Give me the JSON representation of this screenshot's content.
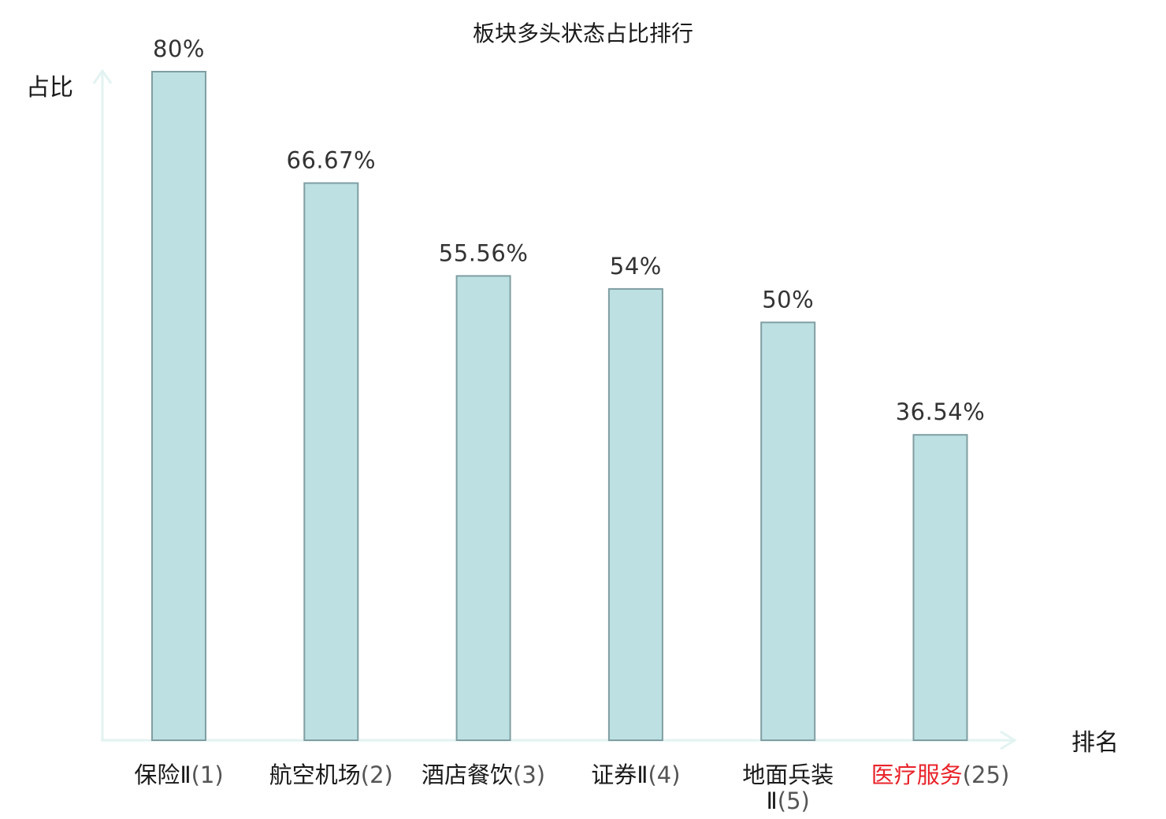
{
  "chart_data": {
    "type": "bar",
    "title": "板块多头状态占比排行",
    "ylabel": "占比",
    "xlabel": "排名",
    "ylim": [
      0,
      80
    ],
    "grid": false,
    "categories": [
      {
        "lines": [
          {
            "name": "保险Ⅱ",
            "rank": "(1)"
          }
        ],
        "highlight": false
      },
      {
        "lines": [
          {
            "name": "航空机场",
            "rank": "(2)"
          }
        ],
        "highlight": false
      },
      {
        "lines": [
          {
            "name": "酒店餐饮",
            "rank": "(3)"
          }
        ],
        "highlight": false
      },
      {
        "lines": [
          {
            "name": "证券Ⅱ",
            "rank": "(4)"
          }
        ],
        "highlight": false
      },
      {
        "lines": [
          {
            "name": "地面兵装",
            "rank": ""
          },
          {
            "name": "Ⅱ",
            "rank": "(5)"
          }
        ],
        "highlight": false
      },
      {
        "lines": [
          {
            "name": "医疗服务",
            "rank": "(25)"
          }
        ],
        "highlight": true
      }
    ],
    "values": [
      80,
      66.67,
      55.56,
      54,
      50,
      36.54
    ],
    "value_labels": [
      "80%",
      "66.67%",
      "55.56%",
      "54%",
      "50%",
      "36.54%"
    ],
    "colors": {
      "bar_fill": "#bde0e3",
      "bar_stroke": "#7f9ea2",
      "axis": "#e2f3f1",
      "highlight_text": "#e8232a",
      "text": "#1a1a1a"
    }
  }
}
